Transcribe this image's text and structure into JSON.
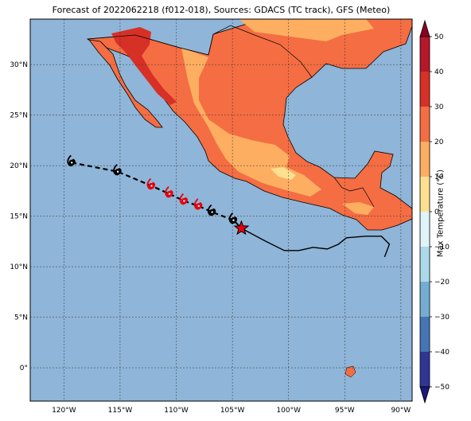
{
  "title": "Forecast of 2022062218 (f012-018), Sources: GDACS (TC track), GFS (Meteo)",
  "map": {
    "lon_range": [
      -123,
      -89
    ],
    "lat_range": [
      -3.3,
      34.5
    ],
    "lon_ticks": [
      {
        "lon": -120,
        "label": "120°W"
      },
      {
        "lon": -115,
        "label": "115°W"
      },
      {
        "lon": -110,
        "label": "110°W"
      },
      {
        "lon": -105,
        "label": "105°W"
      },
      {
        "lon": -100,
        "label": "100°W"
      },
      {
        "lon": -95,
        "label": "95°W"
      },
      {
        "lon": -90,
        "label": "90°W"
      }
    ],
    "lat_ticks": [
      {
        "lat": 30,
        "label": "30°N"
      },
      {
        "lat": 25,
        "label": "25°N"
      },
      {
        "lat": 20,
        "label": "20°N"
      },
      {
        "lat": 15,
        "label": "15°N"
      },
      {
        "lat": 10,
        "label": "10°N"
      },
      {
        "lat": 5,
        "label": "5°N"
      },
      {
        "lat": 0,
        "label": "0°"
      }
    ],
    "ocean_color": "#8fb5d8",
    "grid": true
  },
  "colorbar": {
    "label": "Max Temperature (°C)",
    "ticks": [
      "50",
      "40",
      "30",
      "20",
      "10",
      "0",
      "−10",
      "−20",
      "−30",
      "−40",
      "−50"
    ],
    "colors": [
      "#8b0021",
      "#b5182a",
      "#d73027",
      "#f46d43",
      "#fdae61",
      "#fee090",
      "#e0f3f8",
      "#abd9e9",
      "#74add1",
      "#4575b4",
      "#313695",
      "#1a1a7a"
    ]
  },
  "track": {
    "past": [
      {
        "lon": -119.3,
        "lat": 20.3,
        "kind": "low"
      },
      {
        "lon": -115.2,
        "lat": 19.4,
        "kind": "low"
      },
      {
        "lon": -112.2,
        "lat": 18.0,
        "kind": "storm"
      },
      {
        "lon": -110.6,
        "lat": 17.2,
        "kind": "storm"
      },
      {
        "lon": -109.3,
        "lat": 16.5,
        "kind": "storm"
      },
      {
        "lon": -108.0,
        "lat": 16.0,
        "kind": "storm"
      },
      {
        "lon": -106.8,
        "lat": 15.4,
        "kind": "low"
      },
      {
        "lon": -104.9,
        "lat": 14.6,
        "kind": "low"
      }
    ],
    "current": {
      "lon": -104.2,
      "lat": 13.8
    }
  }
}
